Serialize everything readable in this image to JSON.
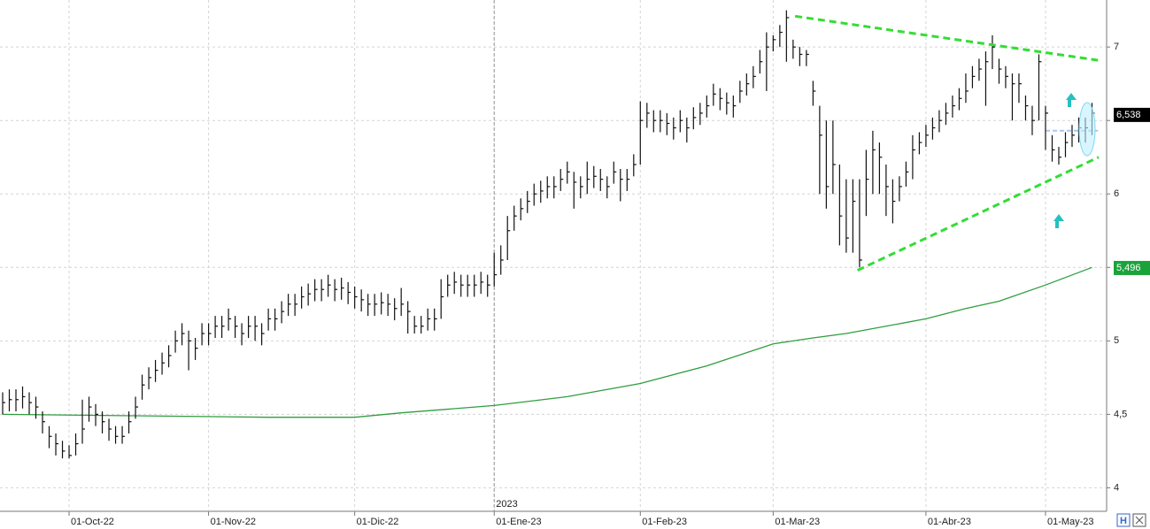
{
  "chart_data": {
    "type": "ohlc",
    "year_label": "2023",
    "categories": [
      null,
      null,
      null,
      null,
      null,
      null,
      null,
      null,
      null,
      null,
      "01-Oct-22",
      null,
      null,
      null,
      null,
      null,
      null,
      null,
      null,
      null,
      null,
      null,
      null,
      null,
      null,
      null,
      null,
      null,
      null,
      null,
      null,
      "01-Nov-22",
      null,
      null,
      null,
      null,
      null,
      null,
      null,
      null,
      null,
      null,
      null,
      null,
      null,
      null,
      null,
      null,
      null,
      null,
      null,
      null,
      null,
      "01-Dic-22",
      null,
      null,
      null,
      null,
      null,
      null,
      null,
      null,
      null,
      null,
      null,
      null,
      null,
      null,
      null,
      null,
      null,
      null,
      null,
      null,
      "01-Ene-23",
      null,
      null,
      null,
      null,
      null,
      null,
      null,
      null,
      null,
      null,
      null,
      null,
      null,
      null,
      null,
      null,
      null,
      null,
      null,
      null,
      null,
      "01-Feb-23",
      null,
      null,
      null,
      null,
      null,
      null,
      null,
      null,
      null,
      null,
      null,
      null,
      null,
      null,
      null,
      null,
      null,
      null,
      null,
      "01-Mar-23",
      null,
      null,
      null,
      null,
      null,
      null,
      null,
      null,
      null,
      null,
      null,
      null,
      null,
      null,
      null,
      null,
      null,
      null,
      null,
      null,
      null,
      null,
      "01-Abr-23",
      null,
      null,
      null,
      null,
      null,
      null,
      null,
      null,
      null,
      null,
      null,
      null,
      null,
      null,
      null,
      null,
      null,
      "01-May-23",
      null,
      null,
      null,
      null,
      null,
      null,
      null
    ],
    "ohlc": {
      "color": "#111111",
      "high": [
        4.65,
        4.67,
        4.67,
        4.69,
        4.65,
        4.62,
        4.52,
        4.42,
        4.37,
        4.32,
        4.29,
        4.37,
        4.6,
        4.62,
        4.57,
        4.52,
        4.47,
        4.42,
        4.42,
        4.52,
        4.62,
        4.77,
        4.82,
        4.87,
        4.92,
        4.97,
        5.07,
        5.12,
        5.07,
        5.02,
        5.12,
        5.12,
        5.17,
        5.17,
        5.22,
        5.17,
        5.12,
        5.17,
        5.17,
        5.12,
        5.22,
        5.22,
        5.27,
        5.32,
        5.32,
        5.37,
        5.39,
        5.42,
        5.42,
        5.45,
        5.42,
        5.43,
        5.4,
        5.37,
        5.35,
        5.32,
        5.32,
        5.33,
        5.32,
        5.29,
        5.36,
        5.27,
        5.17,
        5.17,
        5.22,
        5.22,
        5.42,
        5.45,
        5.47,
        5.45,
        5.45,
        5.45,
        5.47,
        5.45,
        5.6,
        5.65,
        5.85,
        5.92,
        5.97,
        6.02,
        6.07,
        6.09,
        6.12,
        6.12,
        6.17,
        6.22,
        6.15,
        6.12,
        6.22,
        6.19,
        6.17,
        6.12,
        6.22,
        6.17,
        6.17,
        6.27,
        6.63,
        6.62,
        6.57,
        6.57,
        6.55,
        6.52,
        6.57,
        6.52,
        6.59,
        6.62,
        6.67,
        6.75,
        6.72,
        6.69,
        6.67,
        6.77,
        6.82,
        6.87,
        6.98,
        7.1,
        7.08,
        7.15,
        7.25,
        7.05,
        7.0,
        6.98,
        6.77,
        6.6,
        6.5,
        6.5,
        6.2,
        6.1,
        6.1,
        6.1,
        6.3,
        6.43,
        6.35,
        6.2,
        6.1,
        6.12,
        6.22,
        6.4,
        6.42,
        6.47,
        6.52,
        6.57,
        6.62,
        6.67,
        6.72,
        6.82,
        6.87,
        6.92,
        6.97,
        7.08,
        6.92,
        6.87,
        6.82,
        6.82,
        6.67,
        6.6,
        6.95,
        6.6,
        6.4,
        6.32,
        6.42,
        6.47,
        6.52,
        6.52,
        6.62
      ],
      "low": [
        4.5,
        4.52,
        4.52,
        4.54,
        4.5,
        4.47,
        4.37,
        4.27,
        4.22,
        4.2,
        4.2,
        4.22,
        4.3,
        4.45,
        4.42,
        4.37,
        4.32,
        4.3,
        4.3,
        4.37,
        4.47,
        4.6,
        4.67,
        4.72,
        4.77,
        4.82,
        4.92,
        4.97,
        4.8,
        4.87,
        4.97,
        4.97,
        5.02,
        5.02,
        5.07,
        5.02,
        4.97,
        5.02,
        5.0,
        4.97,
        5.07,
        5.07,
        5.12,
        5.17,
        5.17,
        5.22,
        5.24,
        5.27,
        5.27,
        5.3,
        5.27,
        5.28,
        5.25,
        5.22,
        5.2,
        5.17,
        5.17,
        5.18,
        5.17,
        5.14,
        5.17,
        5.05,
        5.05,
        5.05,
        5.07,
        5.07,
        5.15,
        5.3,
        5.32,
        5.3,
        5.3,
        5.3,
        5.32,
        5.3,
        5.37,
        5.45,
        5.55,
        5.75,
        5.82,
        5.87,
        5.92,
        5.94,
        5.97,
        5.97,
        6.02,
        6.07,
        5.9,
        5.97,
        6.0,
        6.04,
        6.02,
        5.97,
        6.07,
        5.95,
        6.02,
        6.12,
        6.2,
        6.45,
        6.42,
        6.42,
        6.4,
        6.37,
        6.42,
        6.35,
        6.44,
        6.47,
        6.52,
        6.6,
        6.57,
        6.54,
        6.52,
        6.62,
        6.67,
        6.72,
        6.82,
        6.7,
        6.97,
        7.0,
        6.9,
        6.92,
        6.87,
        6.87,
        6.6,
        6.0,
        5.9,
        6.0,
        5.65,
        5.6,
        5.6,
        5.5,
        5.85,
        6.0,
        6.0,
        5.85,
        5.8,
        5.95,
        6.05,
        6.1,
        6.27,
        6.32,
        6.37,
        6.42,
        6.47,
        6.52,
        6.57,
        6.62,
        6.72,
        6.77,
        6.6,
        6.85,
        6.75,
        6.72,
        6.5,
        6.62,
        6.5,
        6.4,
        6.5,
        6.3,
        6.22,
        6.2,
        6.25,
        6.32,
        6.35,
        6.35,
        6.4
      ],
      "close": [
        4.58,
        4.6,
        4.6,
        4.62,
        4.58,
        4.55,
        4.45,
        4.35,
        4.3,
        4.25,
        4.22,
        4.3,
        4.4,
        4.55,
        4.5,
        4.45,
        4.4,
        4.35,
        4.35,
        4.45,
        4.55,
        4.7,
        4.75,
        4.8,
        4.85,
        4.9,
        5.0,
        5.05,
        5.0,
        4.95,
        5.05,
        5.05,
        5.1,
        5.1,
        5.15,
        5.1,
        5.05,
        5.1,
        5.1,
        5.05,
        5.15,
        5.15,
        5.2,
        5.25,
        5.25,
        5.3,
        5.32,
        5.35,
        5.35,
        5.38,
        5.35,
        5.36,
        5.33,
        5.3,
        5.28,
        5.25,
        5.25,
        5.26,
        5.25,
        5.22,
        5.25,
        5.2,
        5.1,
        5.1,
        5.15,
        5.15,
        5.3,
        5.38,
        5.4,
        5.38,
        5.38,
        5.38,
        5.4,
        5.38,
        5.45,
        5.55,
        5.75,
        5.85,
        5.9,
        5.95,
        6.0,
        6.02,
        6.05,
        6.05,
        6.1,
        6.15,
        6.08,
        6.05,
        6.1,
        6.12,
        6.1,
        6.05,
        6.15,
        6.1,
        6.1,
        6.2,
        6.5,
        6.55,
        6.5,
        6.5,
        6.48,
        6.45,
        6.5,
        6.45,
        6.52,
        6.55,
        6.6,
        6.68,
        6.65,
        6.62,
        6.6,
        6.7,
        6.75,
        6.8,
        6.9,
        7.0,
        7.05,
        7.1,
        7.2,
        7.0,
        6.95,
        6.95,
        6.7,
        6.4,
        6.05,
        6.2,
        5.85,
        5.7,
        5.95,
        5.55,
        6.1,
        6.3,
        6.25,
        6.05,
        5.95,
        6.05,
        6.15,
        6.3,
        6.35,
        6.4,
        6.45,
        6.5,
        6.55,
        6.6,
        6.65,
        6.7,
        6.8,
        6.85,
        6.9,
        7.0,
        6.85,
        6.8,
        6.75,
        6.75,
        6.6,
        6.5,
        6.9,
        6.55,
        6.3,
        6.25,
        6.35,
        6.4,
        6.45,
        6.45,
        6.55
      ]
    },
    "moving_average": {
      "color": "#2e9e3e",
      "x": [
        0,
        20,
        40,
        53,
        60,
        74,
        85,
        96,
        106,
        116,
        122,
        127,
        139,
        145,
        150,
        157,
        164
      ],
      "values": [
        4.5,
        4.49,
        4.48,
        4.48,
        4.51,
        4.56,
        4.62,
        4.71,
        4.83,
        4.98,
        5.02,
        5.05,
        5.15,
        5.22,
        5.27,
        5.38,
        5.5
      ]
    },
    "trendlines": [
      {
        "color": "#33dd33",
        "x": [
          119.3,
          164.9
        ],
        "values": [
          7.21,
          6.91
        ]
      },
      {
        "color": "#33dd33",
        "x": [
          128.7,
          165
        ],
        "values": [
          5.48,
          6.25
        ]
      }
    ],
    "reference_line": {
      "color": "#a8c8e8",
      "x": [
        157,
        164.9
      ],
      "values": [
        6.43,
        6.43
      ]
    },
    "price_markers": [
      {
        "value": 6.538,
        "label": "6,538",
        "color": "#000000"
      },
      {
        "value": 5.496,
        "label": "5,496",
        "color": "#1aa33a"
      }
    ],
    "xlim": [
      -0.4,
      166.2
    ],
    "ylim": [
      3.84,
      7.32
    ],
    "yticks": [
      4,
      {
        "value": 4.5,
        "label": "4,5"
      },
      5,
      {
        "value": 5.5,
        "label": null
      },
      6,
      {
        "value": 6.5,
        "label": null
      },
      7
    ],
    "grid": true
  }
}
